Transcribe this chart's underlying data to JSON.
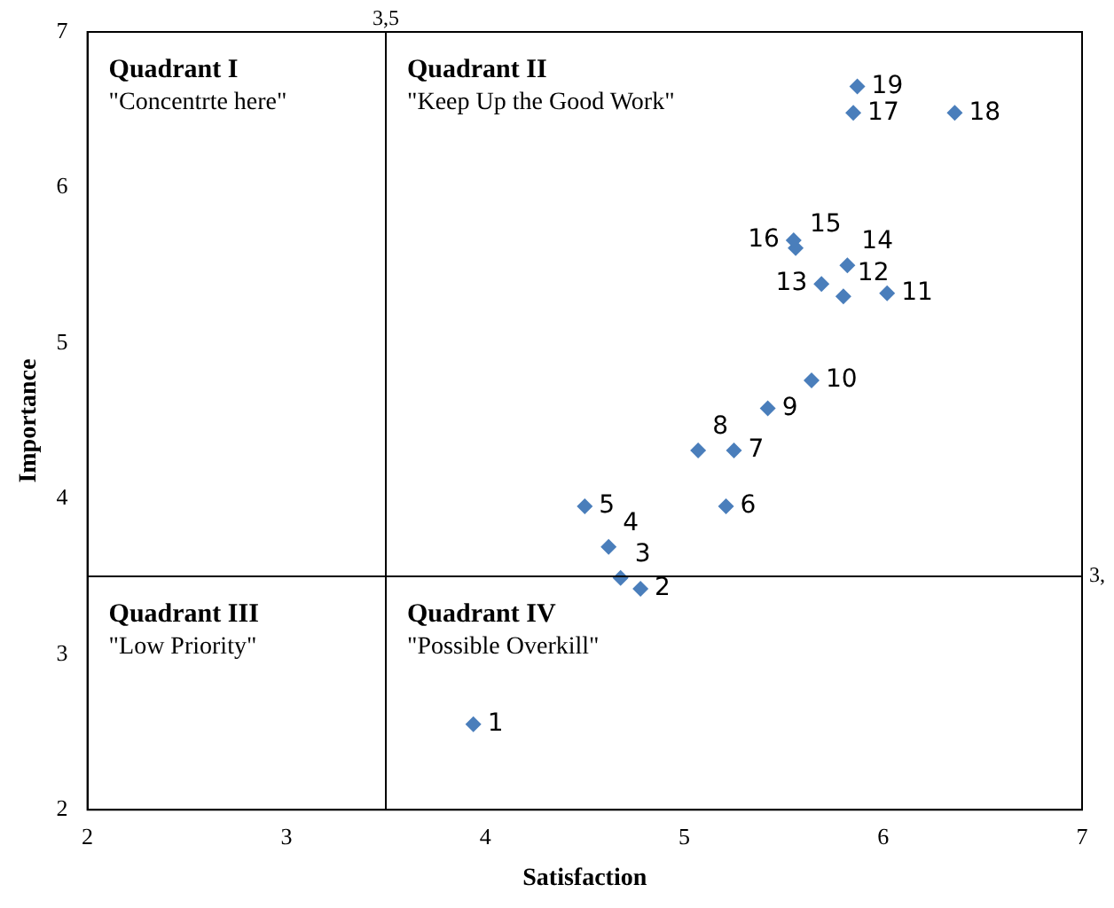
{
  "chart_data": {
    "type": "scatter",
    "xlabel": "Satisfaction",
    "ylabel": "Importance",
    "color": "#4a7ebb",
    "marker": "diamond",
    "grid": false,
    "x": [
      3.94,
      4.78,
      4.68,
      4.62,
      4.5,
      5.21,
      5.25,
      5.07,
      5.42,
      5.64,
      6.02,
      5.8,
      5.69,
      5.82,
      5.56,
      5.55,
      5.85,
      6.36,
      5.87
    ],
    "values": [
      2.55,
      3.42,
      3.49,
      3.69,
      3.95,
      3.95,
      4.31,
      4.31,
      4.58,
      4.76,
      5.32,
      5.3,
      5.38,
      5.5,
      5.61,
      5.66,
      6.48,
      6.48,
      6.65
    ],
    "xlim": [
      2,
      7
    ],
    "ylim": [
      2,
      7
    ],
    "xticks": [
      2,
      3,
      4,
      5,
      6,
      7
    ],
    "yticks": [
      2,
      3,
      4,
      5,
      6,
      7
    ],
    "ref_lines": [
      {
        "axis": "x",
        "value": 3.5,
        "label": "3,5",
        "color": "#000000"
      },
      {
        "axis": "y",
        "value": 3.5,
        "label": "3,",
        "color": "#000000"
      }
    ],
    "annotations": [
      "Quadrant I",
      "\"Concentrte here\"",
      "Quadrant II",
      "\"Keep Up the Good Work\"",
      "Quadrant III",
      "\"Low Priority\"",
      "Quadrant IV",
      "\"Possible Overkill\"",
      {
        "text": "1",
        "x": 3.94,
        "y": 2.55
      },
      {
        "text": "2",
        "x": 4.78,
        "y": 3.42
      },
      {
        "text": "3",
        "x": 4.68,
        "y": 3.49
      },
      {
        "text": "4",
        "x": 4.62,
        "y": 3.69
      },
      {
        "text": "5",
        "x": 4.5,
        "y": 3.95
      },
      {
        "text": "6",
        "x": 5.21,
        "y": 3.95
      },
      {
        "text": "7",
        "x": 5.25,
        "y": 4.31
      },
      {
        "text": "8",
        "x": 5.07,
        "y": 4.31
      },
      {
        "text": "9",
        "x": 5.42,
        "y": 4.58
      },
      {
        "text": "10",
        "x": 5.64,
        "y": 4.76
      },
      {
        "text": "11",
        "x": 6.02,
        "y": 5.32
      },
      {
        "text": "12",
        "x": 5.8,
        "y": 5.3
      },
      {
        "text": "13",
        "x": 5.69,
        "y": 5.38
      },
      {
        "text": "14",
        "x": 5.82,
        "y": 5.5
      },
      {
        "text": "15",
        "x": 5.56,
        "y": 5.61
      },
      {
        "text": "16",
        "x": 5.55,
        "y": 5.66
      },
      {
        "text": "17",
        "x": 5.85,
        "y": 6.48
      },
      {
        "text": "18",
        "x": 6.36,
        "y": 6.48
      },
      {
        "text": "19",
        "x": 5.87,
        "y": 6.65
      }
    ]
  }
}
